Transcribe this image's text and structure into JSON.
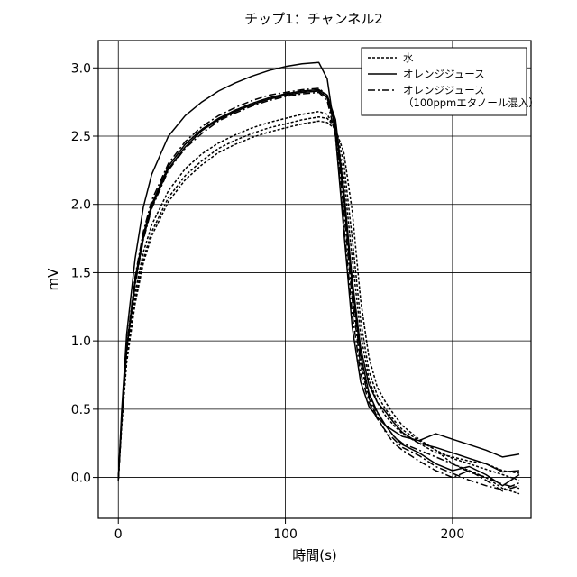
{
  "chart_data": {
    "type": "line",
    "title": "チップ1：チャンネル2",
    "xlabel": "時間(s)",
    "ylabel": "mV",
    "xlim": [
      -12,
      247
    ],
    "ylim": [
      -0.3,
      3.2
    ],
    "x_ticks": [
      0,
      100,
      200
    ],
    "y_ticks": [
      0.0,
      0.5,
      1.0,
      1.5,
      2.0,
      2.5,
      3.0
    ],
    "x_tick_labels": [
      "0",
      "100",
      "200"
    ],
    "y_tick_labels": [
      "0.0",
      "0.5",
      "1.0",
      "1.5",
      "2.0",
      "2.5",
      "3.0"
    ],
    "grid": true,
    "legend_position": "top-right",
    "series": [
      {
        "name": "水",
        "linestyle": "dotted",
        "color": "#000000",
        "runs": [
          {
            "x": [
              0,
              2,
              5,
              10,
              15,
              20,
              30,
              40,
              50,
              60,
              70,
              80,
              90,
              100,
              110,
              120,
              125,
              130,
              135,
              140,
              145,
              150,
              155,
              160,
              165,
              170,
              180,
              190,
              200,
              210,
              220,
              230,
              240
            ],
            "y": [
              -0.02,
              0.4,
              0.9,
              1.35,
              1.65,
              1.85,
              2.1,
              2.26,
              2.37,
              2.45,
              2.51,
              2.56,
              2.6,
              2.63,
              2.66,
              2.68,
              2.66,
              2.55,
              2.2,
              1.6,
              1.05,
              0.72,
              0.55,
              0.45,
              0.38,
              0.32,
              0.25,
              0.18,
              0.15,
              0.12,
              0.1,
              0.05,
              0.03
            ]
          },
          {
            "x": [
              0,
              2,
              5,
              10,
              15,
              20,
              30,
              40,
              50,
              60,
              70,
              80,
              90,
              100,
              110,
              120,
              125,
              130,
              135,
              140,
              145,
              150,
              155,
              160,
              165,
              170,
              180,
              190,
              200,
              210,
              220,
              230,
              240
            ],
            "y": [
              -0.02,
              0.38,
              0.86,
              1.3,
              1.6,
              1.8,
              2.05,
              2.21,
              2.32,
              2.41,
              2.47,
              2.52,
              2.56,
              2.59,
              2.62,
              2.64,
              2.63,
              2.56,
              2.3,
              1.75,
              1.15,
              0.78,
              0.6,
              0.5,
              0.42,
              0.35,
              0.27,
              0.2,
              0.14,
              0.1,
              0.06,
              0.02,
              -0.02
            ]
          },
          {
            "x": [
              0,
              2,
              5,
              10,
              15,
              20,
              30,
              40,
              50,
              60,
              70,
              80,
              90,
              100,
              110,
              120,
              125,
              130,
              135,
              140,
              145,
              150,
              155,
              160,
              165,
              170,
              180,
              190,
              200,
              210,
              220,
              230,
              240
            ],
            "y": [
              -0.02,
              0.37,
              0.84,
              1.27,
              1.57,
              1.77,
              2.02,
              2.18,
              2.29,
              2.38,
              2.44,
              2.49,
              2.53,
              2.56,
              2.59,
              2.61,
              2.6,
              2.55,
              2.38,
              1.95,
              1.3,
              0.88,
              0.66,
              0.55,
              0.46,
              0.38,
              0.28,
              0.2,
              0.1,
              0.05,
              0.0,
              -0.08,
              -0.12
            ]
          }
        ]
      },
      {
        "name": "オレンジジュース",
        "linestyle": "solid",
        "color": "#000000",
        "runs": [
          {
            "x": [
              0,
              2,
              5,
              10,
              15,
              20,
              30,
              40,
              50,
              60,
              70,
              80,
              90,
              100,
              110,
              120,
              125,
              130,
              135,
              140,
              145,
              150,
              155,
              160,
              165,
              170,
              180,
              190,
              200,
              210,
              220,
              230,
              240
            ],
            "y": [
              -0.02,
              0.48,
              1.05,
              1.6,
              1.98,
              2.22,
              2.5,
              2.65,
              2.75,
              2.83,
              2.89,
              2.94,
              2.98,
              3.01,
              3.03,
              3.04,
              2.92,
              2.5,
              1.8,
              1.1,
              0.7,
              0.52,
              0.44,
              0.38,
              0.34,
              0.3,
              0.27,
              0.32,
              0.28,
              0.24,
              0.2,
              0.15,
              0.17
            ]
          },
          {
            "x": [
              0,
              2,
              5,
              10,
              15,
              20,
              30,
              40,
              50,
              60,
              70,
              80,
              90,
              100,
              110,
              120,
              125,
              130,
              135,
              140,
              145,
              150,
              155,
              160,
              165,
              170,
              180,
              190,
              200,
              210,
              220,
              230,
              240
            ],
            "y": [
              -0.02,
              0.42,
              0.95,
              1.45,
              1.78,
              2.0,
              2.28,
              2.44,
              2.55,
              2.63,
              2.69,
              2.74,
              2.78,
              2.81,
              2.83,
              2.84,
              2.8,
              2.62,
              2.1,
              1.45,
              0.95,
              0.68,
              0.55,
              0.48,
              0.4,
              0.33,
              0.25,
              0.22,
              0.18,
              0.14,
              0.1,
              0.04,
              0.05
            ]
          },
          {
            "x": [
              0,
              2,
              5,
              10,
              15,
              20,
              30,
              40,
              50,
              60,
              70,
              80,
              90,
              100,
              110,
              120,
              125,
              130,
              135,
              140,
              145,
              150,
              155,
              160,
              165,
              170,
              180,
              190,
              200,
              210,
              220,
              230,
              240
            ],
            "y": [
              -0.02,
              0.41,
              0.93,
              1.42,
              1.75,
              1.98,
              2.26,
              2.42,
              2.54,
              2.62,
              2.68,
              2.73,
              2.77,
              2.8,
              2.82,
              2.83,
              2.78,
              2.58,
              2.05,
              1.4,
              0.9,
              0.62,
              0.48,
              0.38,
              0.3,
              0.24,
              0.18,
              0.1,
              0.05,
              0.08,
              0.02,
              -0.06,
              0.02
            ]
          }
        ]
      },
      {
        "name": "オレンジジュース\n（100ppmエタノール混入）",
        "linestyle": "dashdot",
        "color": "#000000",
        "runs": [
          {
            "x": [
              0,
              2,
              5,
              10,
              15,
              20,
              30,
              40,
              50,
              60,
              70,
              80,
              90,
              100,
              110,
              120,
              125,
              130,
              135,
              140,
              145,
              150,
              155,
              160,
              165,
              170,
              180,
              190,
              200,
              210,
              220,
              230,
              240
            ],
            "y": [
              -0.02,
              0.43,
              0.96,
              1.47,
              1.8,
              2.03,
              2.3,
              2.46,
              2.57,
              2.65,
              2.71,
              2.76,
              2.8,
              2.82,
              2.84,
              2.85,
              2.8,
              2.6,
              2.02,
              1.35,
              0.85,
              0.6,
              0.47,
              0.38,
              0.3,
              0.25,
              0.2,
              0.15,
              0.1,
              0.04,
              0.0,
              -0.05,
              -0.08
            ]
          },
          {
            "x": [
              0,
              2,
              5,
              10,
              15,
              20,
              30,
              40,
              50,
              60,
              70,
              80,
              90,
              100,
              110,
              120,
              125,
              130,
              135,
              140,
              145,
              150,
              155,
              160,
              165,
              170,
              180,
              190,
              200,
              210,
              220,
              230,
              240
            ],
            "y": [
              -0.02,
              0.42,
              0.94,
              1.44,
              1.77,
              2.0,
              2.28,
              2.44,
              2.55,
              2.63,
              2.69,
              2.74,
              2.78,
              2.81,
              2.83,
              2.84,
              2.78,
              2.55,
              1.95,
              1.3,
              0.82,
              0.58,
              0.44,
              0.33,
              0.25,
              0.2,
              0.12,
              0.05,
              0.0,
              0.05,
              -0.02,
              -0.1,
              -0.06
            ]
          },
          {
            "x": [
              0,
              2,
              5,
              10,
              15,
              20,
              30,
              40,
              50,
              60,
              70,
              80,
              90,
              100,
              110,
              120,
              125,
              130,
              135,
              140,
              145,
              150,
              155,
              160,
              165,
              170,
              180,
              190,
              200,
              210,
              220,
              230,
              240
            ],
            "y": [
              -0.02,
              0.41,
              0.92,
              1.41,
              1.74,
              1.97,
              2.25,
              2.41,
              2.52,
              2.61,
              2.67,
              2.72,
              2.76,
              2.79,
              2.81,
              2.82,
              2.76,
              2.5,
              1.85,
              1.2,
              0.76,
              0.55,
              0.43,
              0.34,
              0.28,
              0.22,
              0.16,
              0.08,
              0.03,
              -0.02,
              -0.06,
              -0.09,
              -0.04
            ]
          }
        ]
      }
    ]
  }
}
